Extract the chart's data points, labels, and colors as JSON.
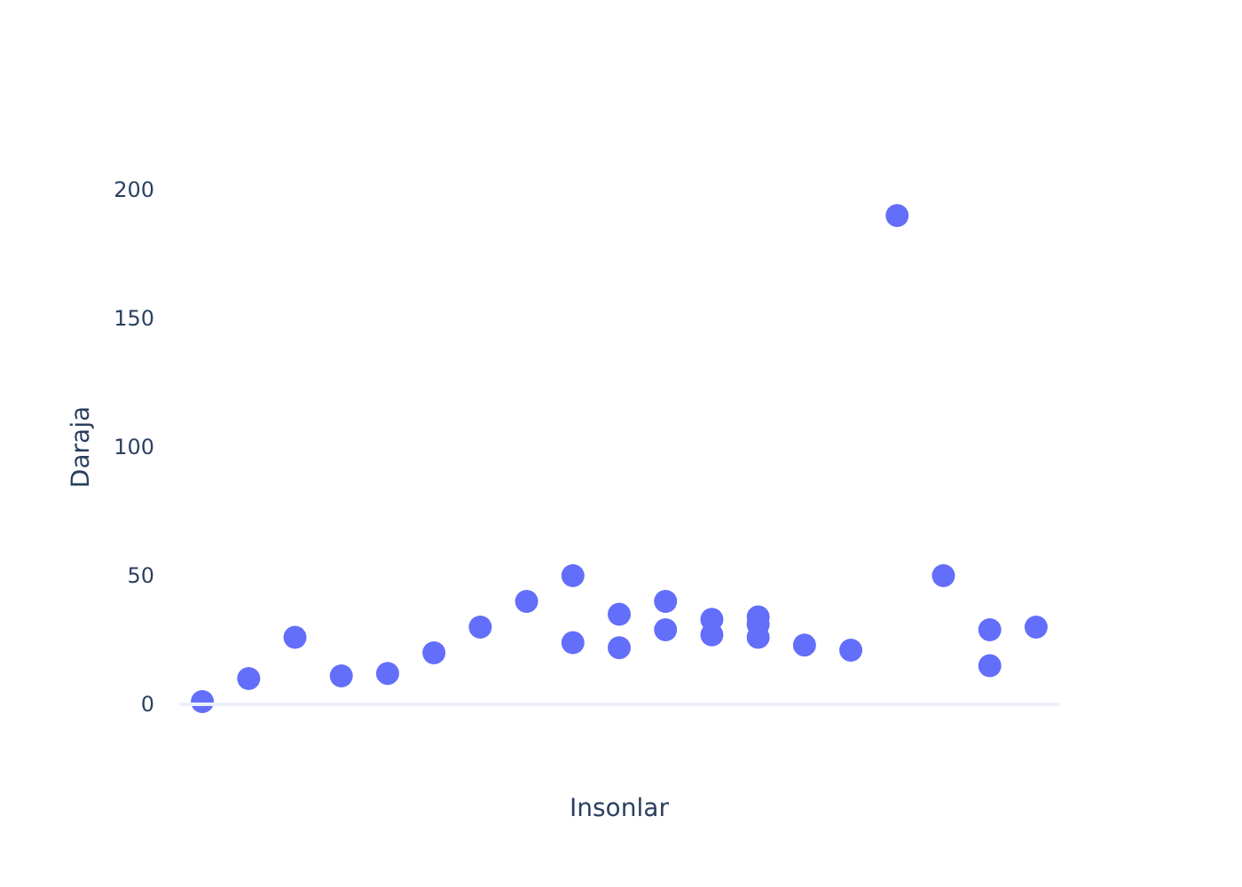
{
  "chart_data": {
    "type": "scatter",
    "xlabel": "Insonlar",
    "ylabel": "Daraja",
    "categories": [
      null,
      null,
      null,
      null,
      null,
      null,
      null,
      null,
      null,
      null,
      null,
      null,
      null,
      null,
      null,
      null,
      null,
      null,
      null
    ],
    "series": [
      {
        "color": "#636efa",
        "values": [
          1,
          10,
          26,
          11,
          12,
          20,
          30,
          40,
          50,
          35,
          40,
          33,
          34,
          23,
          21,
          190,
          50,
          29,
          30
        ]
      },
      {
        "color": "#636efa",
        "values": [
          null,
          null,
          null,
          null,
          null,
          null,
          null,
          null,
          24,
          22,
          29,
          27,
          31,
          null,
          null,
          null,
          null,
          15,
          null
        ]
      },
      {
        "color": "#636efa",
        "values": [
          null,
          null,
          null,
          null,
          null,
          null,
          null,
          null,
          null,
          null,
          null,
          null,
          26,
          null,
          null,
          null,
          null,
          null,
          null
        ]
      }
    ],
    "ylim": [
      0,
      200
    ],
    "yticks": [
      0,
      50,
      100,
      150,
      200
    ],
    "ref_lines": [
      {
        "axis": "y",
        "value": 0,
        "color": "#ebf0f8"
      }
    ],
    "grid": false,
    "marker": "circle",
    "tick_labels": "y"
  }
}
